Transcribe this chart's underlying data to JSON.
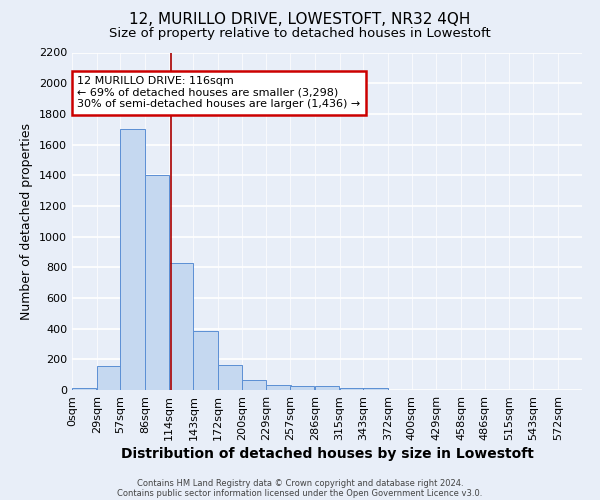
{
  "title": "12, MURILLO DRIVE, LOWESTOFT, NR32 4QH",
  "subtitle": "Size of property relative to detached houses in Lowestoft",
  "xlabel": "Distribution of detached houses by size in Lowestoft",
  "ylabel": "Number of detached properties",
  "bin_labels": [
    "0sqm",
    "29sqm",
    "57sqm",
    "86sqm",
    "114sqm",
    "143sqm",
    "172sqm",
    "200sqm",
    "229sqm",
    "257sqm",
    "286sqm",
    "315sqm",
    "343sqm",
    "372sqm",
    "400sqm",
    "429sqm",
    "458sqm",
    "486sqm",
    "515sqm",
    "543sqm",
    "572sqm"
  ],
  "bin_edges": [
    0,
    29,
    57,
    86,
    114,
    143,
    172,
    200,
    229,
    257,
    286,
    315,
    343,
    372,
    400,
    429,
    458,
    486,
    515,
    543,
    572
  ],
  "bar_heights": [
    15,
    155,
    1700,
    1400,
    830,
    385,
    160,
    65,
    35,
    25,
    25,
    15,
    10,
    0,
    0,
    0,
    0,
    0,
    0,
    0
  ],
  "bar_color": "#c5d8f0",
  "bar_edge_color": "#5b8fd4",
  "property_size": 116,
  "vline_color": "#aa0000",
  "annotation_text": "12 MURILLO DRIVE: 116sqm\n← 69% of detached houses are smaller (3,298)\n30% of semi-detached houses are larger (1,436) →",
  "annotation_box_color": "#ffffff",
  "annotation_box_edge_color": "#cc0000",
  "ylim": [
    0,
    2200
  ],
  "yticks": [
    0,
    200,
    400,
    600,
    800,
    1000,
    1200,
    1400,
    1600,
    1800,
    2000,
    2200
  ],
  "footnote1": "Contains HM Land Registry data © Crown copyright and database right 2024.",
  "footnote2": "Contains public sector information licensed under the Open Government Licence v3.0.",
  "bg_color": "#e8eef8",
  "plot_bg_color": "#e8eef8",
  "grid_color": "#ffffff",
  "title_fontsize": 11,
  "subtitle_fontsize": 9.5,
  "axis_label_fontsize": 9,
  "tick_fontsize": 8
}
